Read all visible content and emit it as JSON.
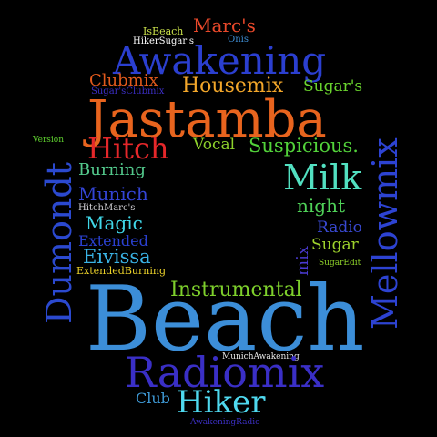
{
  "words": [
    {
      "text": "Marc's",
      "color": "#e8482a"
    },
    {
      "text": "IsBeach",
      "color": "#c9e04a"
    },
    {
      "text": "HikerSugar's",
      "color": "#ffffff"
    },
    {
      "text": "Onis",
      "color": "#3f8fd6"
    },
    {
      "text": "Awakening",
      "color": "#2b3fd0"
    },
    {
      "text": "Clubmix",
      "color": "#e25a1c"
    },
    {
      "text": "Sugar'sClubmix",
      "color": "#3b2ec4"
    },
    {
      "text": "Housemix",
      "color": "#f2a62a"
    },
    {
      "text": "Sugar's",
      "color": "#6ad32e"
    },
    {
      "text": "Jastamba",
      "color": "#e8641e"
    },
    {
      "text": "Version",
      "color": "#5fd12f"
    },
    {
      "text": "Hitch",
      "color": "#e5272a"
    },
    {
      "text": "Vocal",
      "color": "#8ed22c"
    },
    {
      "text": "Suspicious.",
      "color": "#52d23a"
    },
    {
      "text": "Mellowmix",
      "color": "#2d43d2"
    },
    {
      "text": "Dumondt",
      "color": "#2b49cf"
    },
    {
      "text": "Burning",
      "color": "#53c98c"
    },
    {
      "text": "Milk",
      "color": "#52e0c1"
    },
    {
      "text": "Munich",
      "color": "#3344d4"
    },
    {
      "text": "night",
      "color": "#4fd158"
    },
    {
      "text": "HitchMarc's",
      "color": "#d4d2d8"
    },
    {
      "text": "Magic",
      "color": "#40d7e8"
    },
    {
      "text": "Radio",
      "color": "#3949d2"
    },
    {
      "text": "Extended",
      "color": "#2a40cf"
    },
    {
      "text": "mix",
      "color": "#4a3ad0"
    },
    {
      "text": "Sugar",
      "color": "#9ed22c"
    },
    {
      "text": "Eivissa",
      "color": "#3ab3e6"
    },
    {
      "text": "SugarEdit",
      "color": "#8fd32a"
    },
    {
      "text": "ExtendedBurning",
      "color": "#ecd22a"
    },
    {
      "text": "Instrumental",
      "color": "#7ed02c"
    },
    {
      "text": "Beach",
      "color": "#3c8ed8"
    },
    {
      "text": "MunichAwakening",
      "color": "#e9e9e9"
    },
    {
      "text": "Radiomix",
      "color": "#3a2fc6"
    },
    {
      "text": "Club",
      "color": "#3f9bd8"
    },
    {
      "text": "Hiker",
      "color": "#4fd9ef"
    },
    {
      "text": "AwakeningRadio",
      "color": "#3b2fc2"
    }
  ]
}
